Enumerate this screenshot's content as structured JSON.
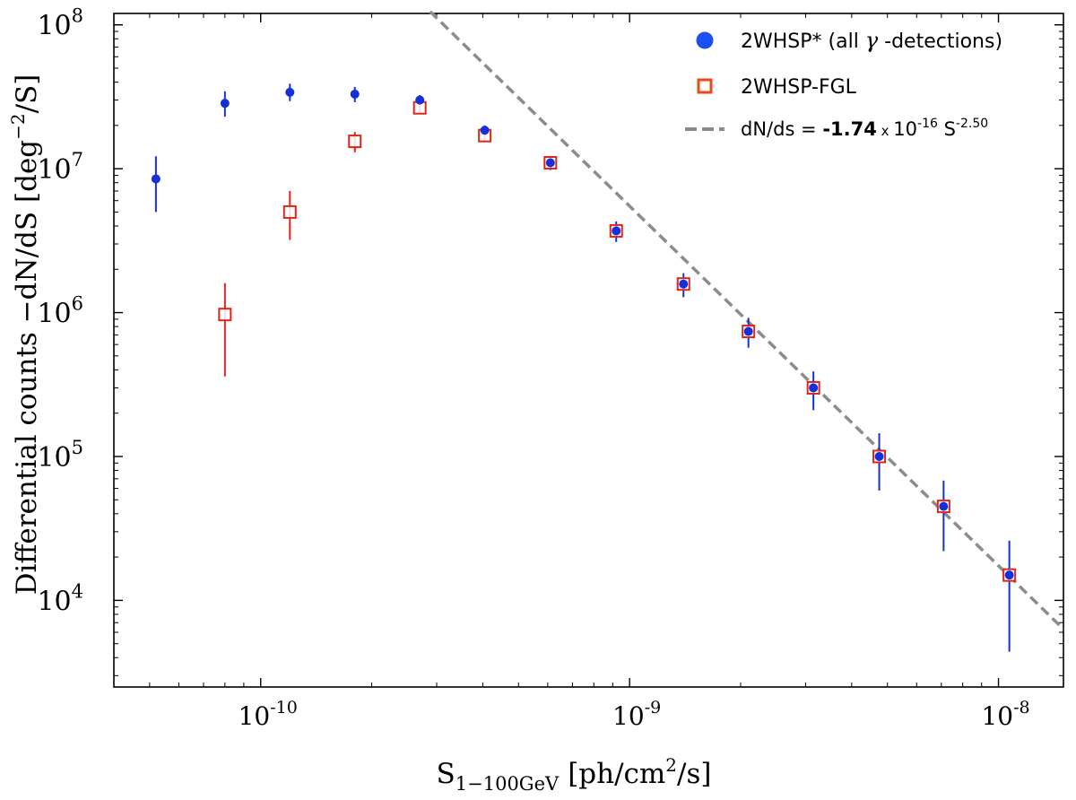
{
  "chart_data": {
    "type": "scatter",
    "xscale": "log",
    "yscale": "log",
    "xlim": [
      4e-11,
      1.5e-08
    ],
    "ylim": [
      2500.0,
      120000000.0
    ],
    "grid": false,
    "legend_position": "top-right",
    "x_axis_label": {
      "base": "S",
      "subscript": "1−100GeV",
      "units_prefix": "[ph/cm",
      "units_power": "2",
      "units_suffix": "/s]"
    },
    "y_axis_label": {
      "prefix": "Differential counts  −dN/dS  [deg",
      "power": "−2",
      "suffix": "/S]"
    },
    "x_ticks": [
      {
        "value": 1e-10,
        "base": "10",
        "exp": "-10"
      },
      {
        "value": 1e-09,
        "base": "10",
        "exp": "-9"
      },
      {
        "value": 1e-08,
        "base": "10",
        "exp": "-8"
      }
    ],
    "y_ticks": [
      {
        "value": 10000.0,
        "base": "10",
        "exp": "4"
      },
      {
        "value": 100000.0,
        "base": "10",
        "exp": "5"
      },
      {
        "value": 1000000.0,
        "base": "10",
        "exp": "6"
      },
      {
        "value": 10000000.0,
        "base": "10",
        "exp": "7"
      },
      {
        "value": 100000000.0,
        "base": "10",
        "exp": "8"
      }
    ],
    "series": [
      {
        "name": "2WHSP* (all γ -detections)",
        "legend_parts": [
          "2WHSP* (all ",
          "γ",
          " -detections)"
        ],
        "marker": "circle",
        "color": "#1530d6",
        "legend_color": "#1a4ff0",
        "points": [
          {
            "x": 5.2e-11,
            "y": 8500000.0,
            "ylo": 5000000.0,
            "yhi": 12200000.0
          },
          {
            "x": 8e-11,
            "y": 28500000.0,
            "ylo": 23000000.0,
            "yhi": 34500000.0
          },
          {
            "x": 1.2e-10,
            "y": 34000000.0,
            "ylo": 29500000.0,
            "yhi": 39000000.0
          },
          {
            "x": 1.8e-10,
            "y": 33000000.0,
            "ylo": 29000000.0,
            "yhi": 37000000.0
          },
          {
            "x": 2.7e-10,
            "y": 30000000.0,
            "ylo": 27500000.0,
            "yhi": 32500000.0
          },
          {
            "x": 4.05e-10,
            "y": 18500000.0,
            "ylo": 17000000.0,
            "yhi": 20000000.0
          },
          {
            "x": 6.1e-10,
            "y": 11000000.0,
            "ylo": 9800000.0,
            "yhi": 12000000.0
          },
          {
            "x": 9.2e-10,
            "y": 3700000.0,
            "ylo": 3100000.0,
            "yhi": 4300000.0
          },
          {
            "x": 1.4e-09,
            "y": 1580000.0,
            "ylo": 1280000.0,
            "yhi": 1880000.0
          },
          {
            "x": 2.1e-09,
            "y": 740000.0,
            "ylo": 570000.0,
            "yhi": 920000.0
          },
          {
            "x": 3.15e-09,
            "y": 300000.0,
            "ylo": 210000.0,
            "yhi": 390000.0
          },
          {
            "x": 4.75e-09,
            "y": 100000.0,
            "ylo": 58000.0,
            "yhi": 145000.0
          },
          {
            "x": 7.1e-09,
            "y": 45000.0,
            "ylo": 22000.0,
            "yhi": 68000.0
          },
          {
            "x": 1.07e-08,
            "y": 15000.0,
            "ylo": 4400.0,
            "yhi": 26000.0
          }
        ]
      },
      {
        "name": "2WHSP-FGL",
        "marker": "square-open",
        "color": "#e0251a",
        "legend_color": "#e84a1a",
        "points": [
          {
            "x": 8e-11,
            "y": 970000.0,
            "ylo": 360000.0,
            "yhi": 1600000.0
          },
          {
            "x": 1.2e-10,
            "y": 5000000.0,
            "ylo": 3200000.0,
            "yhi": 7000000.0
          },
          {
            "x": 1.8e-10,
            "y": 15500000.0,
            "ylo": 13000000.0,
            "yhi": 18000000.0
          },
          {
            "x": 2.7e-10,
            "y": 26500000.0,
            "ylo": 24000000.0,
            "yhi": 29000000.0
          },
          {
            "x": 4.05e-10,
            "y": 17000000.0,
            "ylo": 15500000.0,
            "yhi": 18500000.0
          },
          {
            "x": 6.1e-10,
            "y": 11000000.0,
            "ylo": 10000000.0,
            "yhi": 12000000.0
          },
          {
            "x": 9.2e-10,
            "y": 3700000.0,
            "ylo": 3400000.0,
            "yhi": 4000000.0
          },
          {
            "x": 1.4e-09,
            "y": 1580000.0,
            "ylo": 1450000.0,
            "yhi": 1700000.0
          },
          {
            "x": 2.1e-09,
            "y": 740000.0,
            "ylo": 680000.0,
            "yhi": 800000.0
          },
          {
            "x": 3.15e-09,
            "y": 300000.0,
            "ylo": 280000.0,
            "yhi": 320000.0
          },
          {
            "x": 4.75e-09,
            "y": 100000.0,
            "ylo": 90000.0,
            "yhi": 110000.0
          },
          {
            "x": 7.1e-09,
            "y": 45000.0,
            "ylo": 41000.0,
            "yhi": 49000.0
          },
          {
            "x": 1.07e-08,
            "y": 15000.0,
            "ylo": 13500.0,
            "yhi": 16500.0
          }
        ]
      }
    ],
    "fit_line": {
      "name": "dN/ds = -1.74 x 10-16 S-2.50",
      "legend_parts": {
        "pre": "dN/ds = ",
        "coef": "-1.74",
        "times": " x ",
        "ten": "10",
        "coef_exp": "-16",
        "var": " S",
        "slope_exp": "-2.50"
      },
      "coefficient": 1.74e-16,
      "slope": -2.5,
      "color": "#8c8c8c",
      "style": "dashed",
      "x_range": [
        2.88e-10,
        1.5e-08
      ]
    }
  }
}
